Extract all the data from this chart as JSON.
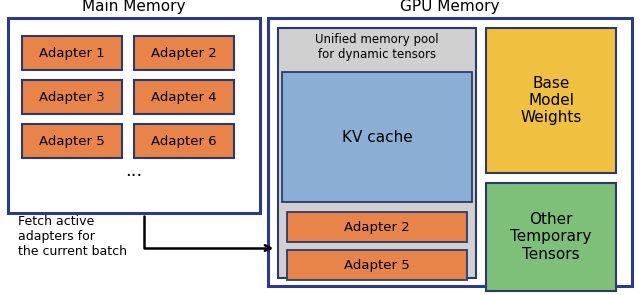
{
  "fig_width": 6.4,
  "fig_height": 2.95,
  "dpi": 100,
  "bg_color": "#ffffff",
  "adapter_color": "#E8834A",
  "adapter_edge_color": "#2B3A6B",
  "kv_cache_color": "#8BAFD4",
  "kv_cache_edge_color": "#2B3A6B",
  "unified_pool_color": "#D0D0D0",
  "unified_pool_edge_color": "#2B3A6B",
  "main_memory_box_color": "#ffffff",
  "main_memory_edge_color": "#2B3A8B",
  "gpu_memory_box_color": "#ffffff",
  "gpu_memory_edge_color": "#2B3A8B",
  "base_model_color": "#F0C040",
  "base_model_edge_color": "#2B3A6B",
  "other_tensors_color": "#7EC07A",
  "other_tensors_edge_color": "#2B3A6B",
  "main_memory_label": "Main Memory",
  "gpu_memory_label": "GPU Memory",
  "unified_pool_label": "Unified memory pool\nfor dynamic tensors",
  "kv_cache_label": "KV cache",
  "base_model_label": "Base\nModel\nWeights",
  "other_tensors_label": "Other\nTemporary\nTensors",
  "fetch_label": "Fetch active\nadapters for\nthe current batch",
  "main_adapters": [
    [
      "Adapter 1",
      "Adapter 2"
    ],
    [
      "Adapter 3",
      "Adapter 4"
    ],
    [
      "Adapter 5",
      "Adapter 6"
    ]
  ],
  "gpu_adapters": [
    "Adapter 2",
    "Adapter 5"
  ],
  "dots_label": "..."
}
